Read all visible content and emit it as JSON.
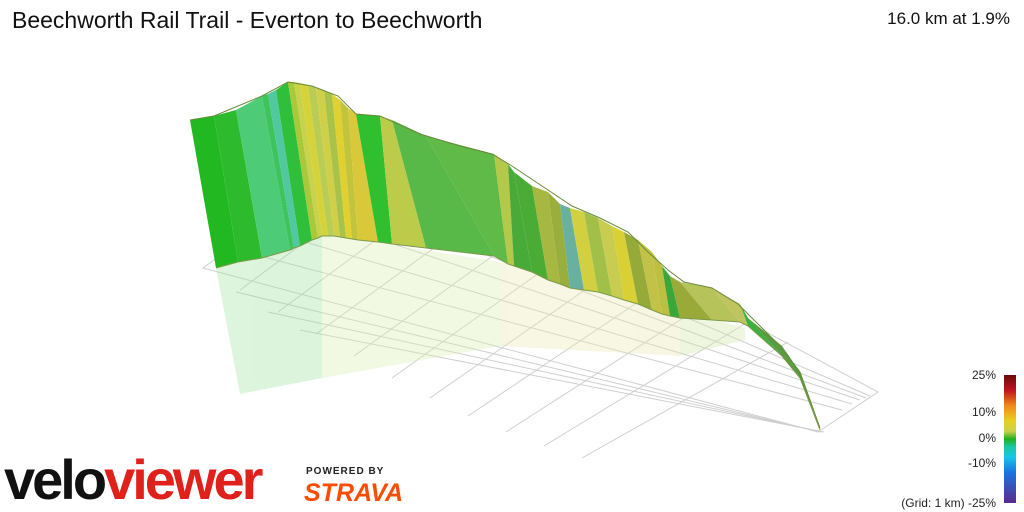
{
  "header": {
    "title": "Beechworth Rail Trail - Everton to Beechworth",
    "summary": "16.0 km at 1.9%"
  },
  "legend": {
    "labels": [
      "25%",
      "10%",
      "0%",
      "-10%",
      "-25%"
    ],
    "grid_note": "(Grid: 1 km)"
  },
  "branding": {
    "logo_part1": "velo",
    "logo_part2": "viewer",
    "powered_by": "POWERED BY",
    "strava": "STRAVA"
  },
  "colors": {
    "gradient_flat": "#20b020",
    "gradient_mild": "#c8d24a",
    "gradient_descent": "#18c8a0",
    "brand_red": "#e0201b",
    "strava_orange": "#fc4c02"
  }
}
